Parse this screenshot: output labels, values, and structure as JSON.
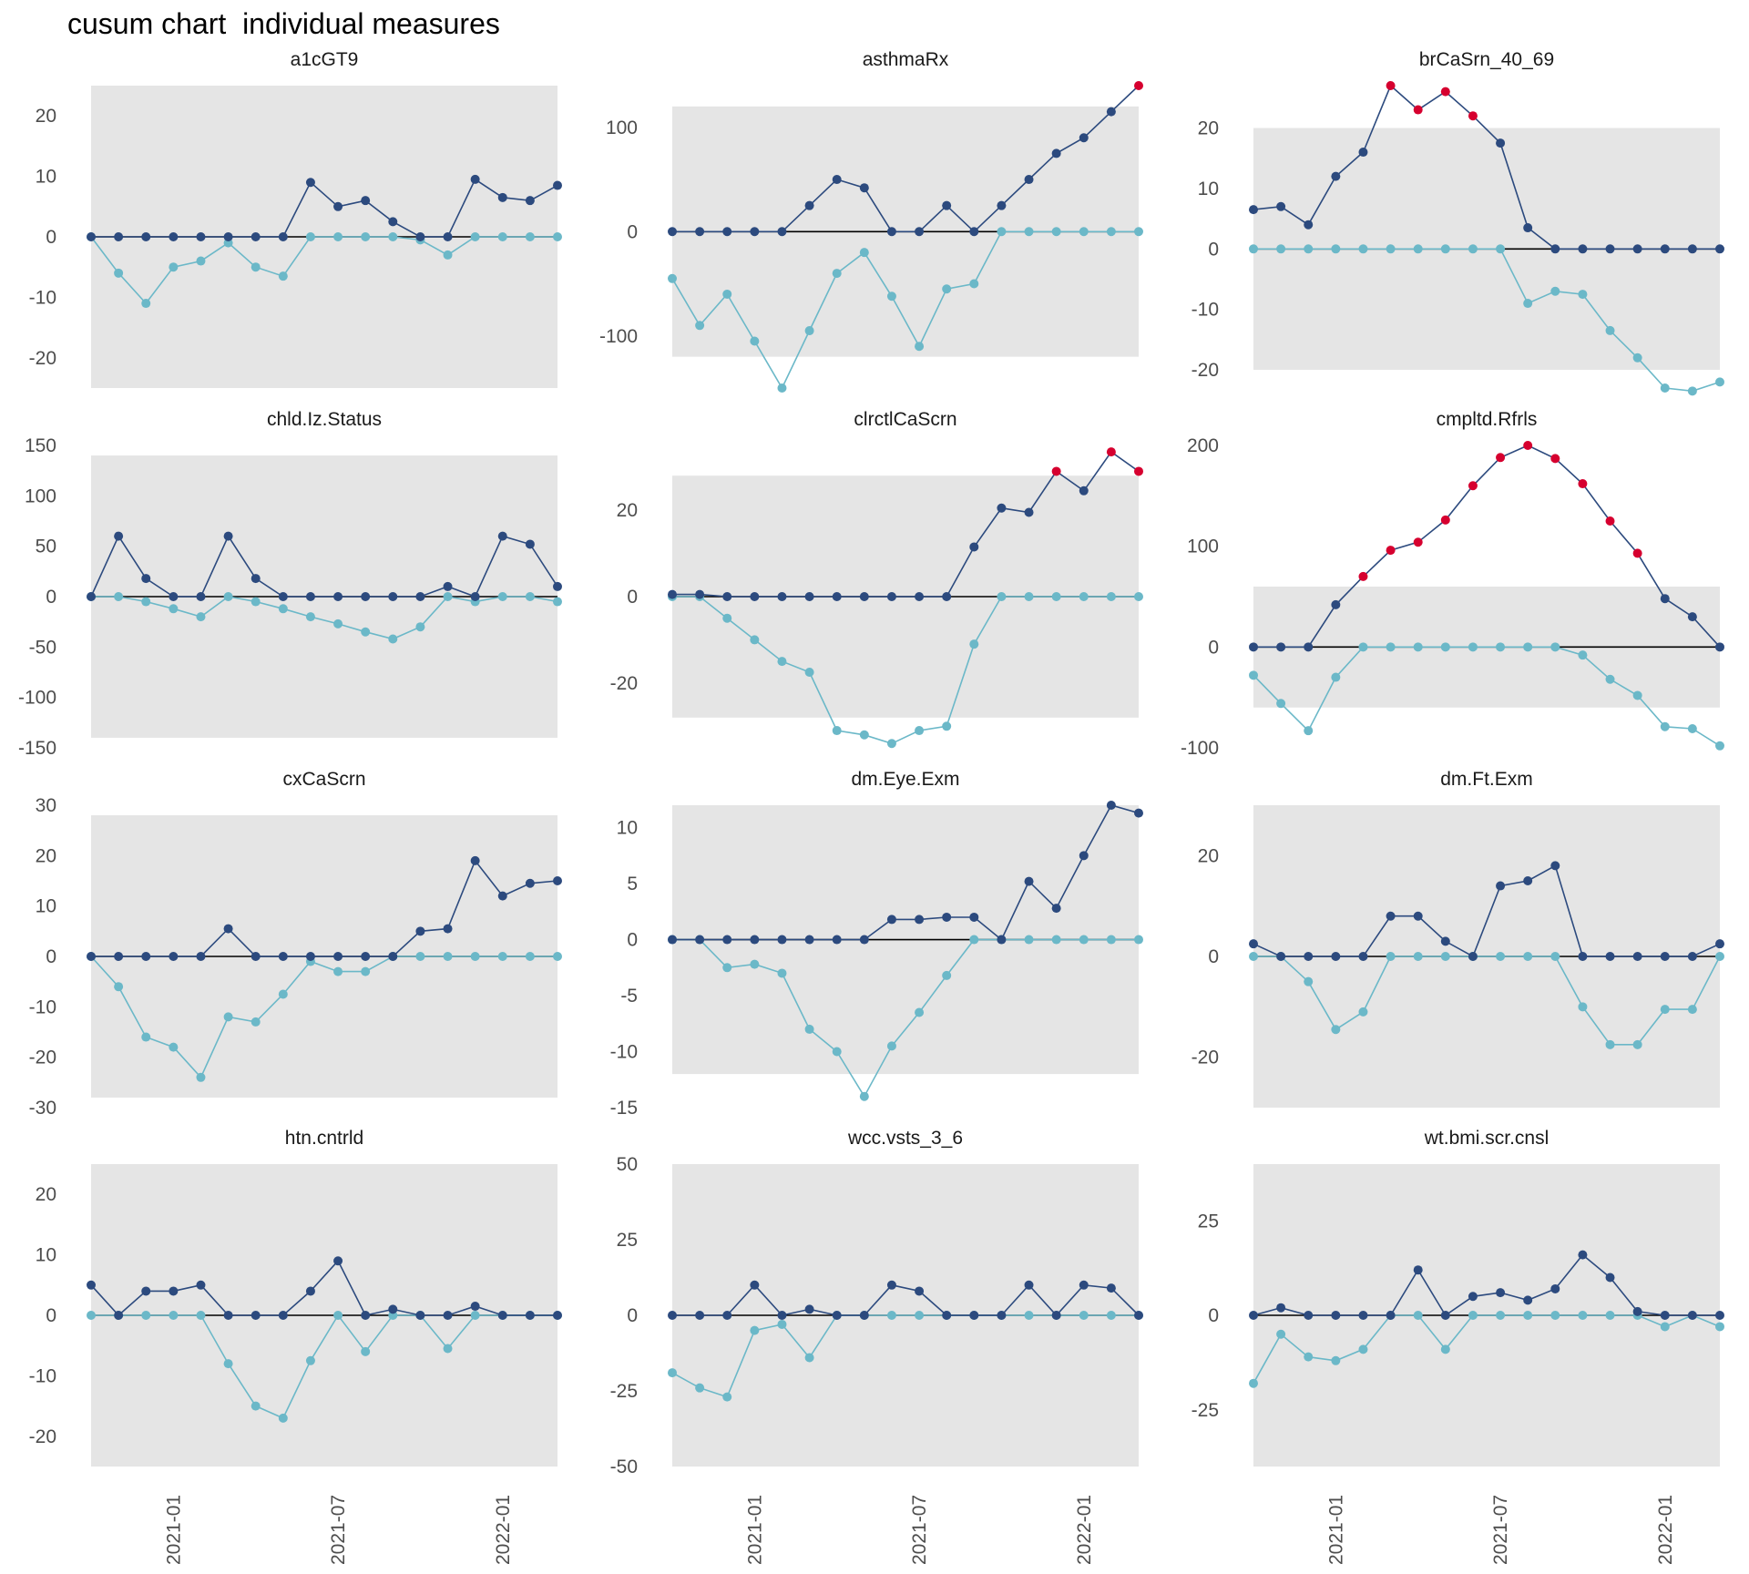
{
  "chart_title": "cusum chart  individual measures",
  "colors": {
    "upper_series": "#2c4a7e",
    "lower_series": "#6bb8c8",
    "signal_point": "#d6002f",
    "band_fill": "#e5e5e5",
    "zero_line": "#000000",
    "axis_text": "#4d4d4d"
  },
  "chart_data": [
    {
      "type": "line",
      "title": "a1cGT9",
      "x": [
        "2020-10",
        "2020-11",
        "2020-12",
        "2021-01",
        "2021-02",
        "2021-03",
        "2021-04",
        "2021-05",
        "2021-06",
        "2021-07",
        "2021-08",
        "2021-09",
        "2021-10",
        "2021-11",
        "2021-12",
        "2022-01",
        "2022-02",
        "2022-03"
      ],
      "ylim": [
        -25,
        25
      ],
      "yticks": [
        -20,
        -10,
        0,
        10,
        20
      ],
      "control_limit": 25,
      "series": [
        {
          "role": "upper",
          "values": [
            0,
            0,
            0,
            0,
            0,
            0,
            0,
            0,
            9,
            5,
            6,
            2.5,
            0,
            0,
            9.5,
            6.5,
            6,
            8.5
          ],
          "signal": []
        },
        {
          "role": "lower",
          "values": [
            0,
            -6,
            -11,
            -5,
            -4,
            -1,
            -5,
            -6.5,
            0,
            0,
            0,
            0,
            -0.5,
            -3,
            0,
            0,
            0,
            0
          ],
          "signal": []
        }
      ]
    },
    {
      "type": "line",
      "title": "asthmaRx",
      "x": [
        "2020-10",
        "2020-11",
        "2020-12",
        "2021-01",
        "2021-02",
        "2021-03",
        "2021-04",
        "2021-05",
        "2021-06",
        "2021-07",
        "2021-08",
        "2021-09",
        "2021-10",
        "2021-11",
        "2021-12",
        "2022-01",
        "2022-02",
        "2022-03"
      ],
      "ylim": [
        -150,
        140
      ],
      "yticks": [
        -100,
        0,
        100
      ],
      "control_limit": 120,
      "series": [
        {
          "role": "upper",
          "values": [
            0,
            0,
            0,
            0,
            0,
            25,
            50,
            42,
            0,
            0,
            25,
            0,
            25,
            50,
            75,
            90,
            115,
            140
          ],
          "signal": [
            17
          ]
        },
        {
          "role": "lower",
          "values": [
            -45,
            -90,
            -60,
            -105,
            -150,
            -95,
            -40,
            -20,
            -62,
            -110,
            -55,
            -50,
            0,
            0,
            0,
            0,
            0,
            0
          ],
          "signal": []
        }
      ]
    },
    {
      "type": "line",
      "title": "brCaSrn_40_69",
      "x": [
        "2020-10",
        "2020-11",
        "2020-12",
        "2021-01",
        "2021-02",
        "2021-03",
        "2021-04",
        "2021-05",
        "2021-06",
        "2021-07",
        "2021-08",
        "2021-09",
        "2021-10",
        "2021-11",
        "2021-12",
        "2022-01",
        "2022-02",
        "2022-03"
      ],
      "ylim": [
        -23,
        27
      ],
      "yticks": [
        -20,
        -10,
        0,
        10,
        20
      ],
      "control_limit": 20,
      "series": [
        {
          "role": "upper",
          "values": [
            6.5,
            7,
            4,
            12,
            16,
            27,
            23,
            26,
            22,
            17.5,
            3.5,
            0,
            0,
            0,
            0,
            0,
            0,
            0
          ],
          "signal": [
            5,
            6,
            7,
            8
          ]
        },
        {
          "role": "lower",
          "values": [
            0,
            0,
            0,
            0,
            0,
            0,
            0,
            0,
            0,
            0,
            -9,
            -7,
            -7.5,
            -13.5,
            -18,
            -23,
            -23.5,
            -22
          ],
          "signal": []
        }
      ]
    },
    {
      "type": "line",
      "title": "chld.Iz.Status",
      "x": [
        "2020-10",
        "2020-11",
        "2020-12",
        "2021-01",
        "2021-02",
        "2021-03",
        "2021-04",
        "2021-05",
        "2021-06",
        "2021-07",
        "2021-08",
        "2021-09",
        "2021-10",
        "2021-11",
        "2021-12",
        "2022-01",
        "2022-02",
        "2022-03"
      ],
      "ylim": [
        -150,
        150
      ],
      "yticks": [
        -150,
        -100,
        -50,
        0,
        50,
        100,
        150
      ],
      "control_limit": 140,
      "series": [
        {
          "role": "upper",
          "values": [
            0,
            60,
            18,
            0,
            0,
            60,
            18,
            0,
            0,
            0,
            0,
            0,
            0,
            10,
            0,
            60,
            52,
            10
          ],
          "signal": []
        },
        {
          "role": "lower",
          "values": [
            0,
            0,
            -5,
            -12,
            -20,
            0,
            -5,
            -12,
            -20,
            -27,
            -35,
            -42,
            -30,
            0,
            -5,
            0,
            0,
            -5
          ],
          "signal": []
        }
      ]
    },
    {
      "type": "line",
      "title": "clrctlCaScrn",
      "x": [
        "2020-10",
        "2020-11",
        "2020-12",
        "2021-01",
        "2021-02",
        "2021-03",
        "2021-04",
        "2021-05",
        "2021-06",
        "2021-07",
        "2021-08",
        "2021-09",
        "2021-10",
        "2021-11",
        "2021-12",
        "2022-01",
        "2022-02",
        "2022-03"
      ],
      "ylim": [
        -35,
        35
      ],
      "yticks": [
        -20,
        0,
        20
      ],
      "control_limit": 28,
      "series": [
        {
          "role": "upper",
          "values": [
            0.5,
            0.5,
            0,
            0,
            0,
            0,
            0,
            0,
            0,
            0,
            0,
            11.5,
            20.5,
            19.5,
            29,
            24.5,
            33.5,
            29
          ],
          "signal": [
            14,
            16,
            17
          ]
        },
        {
          "role": "lower",
          "values": [
            0,
            0,
            -5,
            -10,
            -15,
            -17.5,
            -31,
            -32,
            -34,
            -31,
            -30,
            -11,
            0,
            0,
            0,
            0,
            0,
            0
          ],
          "signal": []
        }
      ]
    },
    {
      "type": "line",
      "title": "cmpltd.Rfrls",
      "x": [
        "2020-10",
        "2020-11",
        "2020-12",
        "2021-01",
        "2021-02",
        "2021-03",
        "2021-04",
        "2021-05",
        "2021-06",
        "2021-07",
        "2021-08",
        "2021-09",
        "2021-10",
        "2021-11",
        "2021-12",
        "2022-01",
        "2022-02",
        "2022-03"
      ],
      "ylim": [
        -100,
        200
      ],
      "yticks": [
        -100,
        0,
        100,
        200
      ],
      "control_limit": 60,
      "series": [
        {
          "role": "upper",
          "values": [
            0,
            0,
            0,
            42,
            70,
            96,
            104,
            126,
            160,
            188,
            200,
            187,
            162,
            125,
            93,
            48,
            30,
            0
          ],
          "signal": [
            4,
            5,
            6,
            7,
            8,
            9,
            10,
            11,
            12,
            13,
            14
          ]
        },
        {
          "role": "lower",
          "values": [
            -28,
            -56,
            -83,
            -30,
            0,
            0,
            0,
            0,
            0,
            0,
            0,
            0,
            -8,
            -32,
            -48,
            -79,
            -81,
            -98
          ],
          "signal": []
        }
      ]
    },
    {
      "type": "line",
      "title": "cxCaScrn",
      "x": [
        "2020-10",
        "2020-11",
        "2020-12",
        "2021-01",
        "2021-02",
        "2021-03",
        "2021-04",
        "2021-05",
        "2021-06",
        "2021-07",
        "2021-08",
        "2021-09",
        "2021-10",
        "2021-11",
        "2021-12",
        "2022-01",
        "2022-02",
        "2022-03"
      ],
      "ylim": [
        -30,
        30
      ],
      "yticks": [
        -30,
        -20,
        -10,
        0,
        10,
        20,
        30
      ],
      "control_limit": 28,
      "series": [
        {
          "role": "upper",
          "values": [
            0,
            0,
            0,
            0,
            0,
            5.5,
            0,
            0,
            0,
            0,
            0,
            0,
            5,
            5.5,
            19,
            12,
            14.5,
            15
          ],
          "signal": []
        },
        {
          "role": "lower",
          "values": [
            0,
            -6,
            -16,
            -18,
            -24,
            -12,
            -13,
            -7.5,
            -1,
            -3,
            -3,
            0,
            0,
            0,
            0,
            0,
            0,
            0
          ],
          "signal": []
        }
      ]
    },
    {
      "type": "line",
      "title": "dm.Eye.Exm",
      "x": [
        "2020-10",
        "2020-11",
        "2020-12",
        "2021-01",
        "2021-02",
        "2021-03",
        "2021-04",
        "2021-05",
        "2021-06",
        "2021-07",
        "2021-08",
        "2021-09",
        "2021-10",
        "2021-11",
        "2021-12",
        "2022-01",
        "2022-02",
        "2022-03"
      ],
      "ylim": [
        -15,
        12
      ],
      "yticks": [
        -15,
        -10,
        -5,
        0,
        5,
        10
      ],
      "control_limit": 12,
      "series": [
        {
          "role": "upper",
          "values": [
            0,
            0,
            0,
            0,
            0,
            0,
            0,
            0,
            1.8,
            1.8,
            2,
            2,
            0,
            5.2,
            2.8,
            7.5,
            12,
            11.3
          ],
          "signal": []
        },
        {
          "role": "lower",
          "values": [
            0,
            0,
            -2.5,
            -2.2,
            -3,
            -8,
            -10,
            -14,
            -9.5,
            -6.5,
            -3.2,
            0,
            0,
            0,
            0,
            0,
            0,
            0
          ],
          "signal": []
        }
      ]
    },
    {
      "type": "line",
      "title": "dm.Ft.Exm",
      "x": [
        "2020-10",
        "2020-11",
        "2020-12",
        "2021-01",
        "2021-02",
        "2021-03",
        "2021-04",
        "2021-05",
        "2021-06",
        "2021-07",
        "2021-08",
        "2021-09",
        "2021-10",
        "2021-11",
        "2021-12",
        "2022-01",
        "2022-02",
        "2022-03"
      ],
      "ylim": [
        -30,
        30
      ],
      "yticks": [
        -20,
        0,
        20
      ],
      "control_limit": 30,
      "series": [
        {
          "role": "upper",
          "values": [
            2.5,
            0,
            0,
            0,
            0,
            8,
            8,
            3,
            0,
            14,
            15,
            18,
            0,
            0,
            0,
            0,
            0,
            2.5
          ],
          "signal": []
        },
        {
          "role": "lower",
          "values": [
            0,
            0,
            -5,
            -14.5,
            -11,
            0,
            0,
            0,
            0,
            0,
            0,
            0,
            -10,
            -17.5,
            -17.5,
            -10.5,
            -10.5,
            0
          ],
          "signal": []
        }
      ]
    },
    {
      "type": "line",
      "title": "htn.cntrld",
      "x": [
        "2020-10",
        "2020-11",
        "2020-12",
        "2021-01",
        "2021-02",
        "2021-03",
        "2021-04",
        "2021-05",
        "2021-06",
        "2021-07",
        "2021-08",
        "2021-09",
        "2021-10",
        "2021-11",
        "2021-12",
        "2022-01",
        "2022-02",
        "2022-03"
      ],
      "ylim": [
        -25,
        25
      ],
      "yticks": [
        -20,
        -10,
        0,
        10,
        20
      ],
      "control_limit": 25,
      "series": [
        {
          "role": "upper",
          "values": [
            5,
            0,
            4,
            4,
            5,
            0,
            0,
            0,
            4,
            9,
            0,
            1,
            0,
            0,
            1.5,
            0,
            0,
            0
          ],
          "signal": []
        },
        {
          "role": "lower",
          "values": [
            0,
            0,
            0,
            0,
            0,
            -8,
            -15,
            -17,
            -7.5,
            0,
            -6,
            0,
            0,
            -5.5,
            0,
            0,
            0,
            0
          ],
          "signal": []
        }
      ]
    },
    {
      "type": "line",
      "title": "wcc.vsts_3_6",
      "x": [
        "2020-10",
        "2020-11",
        "2020-12",
        "2021-01",
        "2021-02",
        "2021-03",
        "2021-04",
        "2021-05",
        "2021-06",
        "2021-07",
        "2021-08",
        "2021-09",
        "2021-10",
        "2021-11",
        "2021-12",
        "2022-01",
        "2022-02",
        "2022-03"
      ],
      "ylim": [
        -50,
        50
      ],
      "yticks": [
        -50,
        -25,
        0,
        25,
        50
      ],
      "control_limit": 50,
      "series": [
        {
          "role": "upper",
          "values": [
            0,
            0,
            0,
            10,
            0,
            2,
            0,
            0,
            10,
            8,
            0,
            0,
            0,
            10,
            0,
            10,
            9,
            0
          ],
          "signal": []
        },
        {
          "role": "lower",
          "values": [
            -19,
            -24,
            -27,
            -5,
            -3,
            -14,
            0,
            0,
            0,
            0,
            0,
            0,
            0,
            0,
            0,
            0,
            0,
            0
          ],
          "signal": []
        }
      ]
    },
    {
      "type": "line",
      "title": "wt.bmi.scr.cnsl",
      "x": [
        "2020-10",
        "2020-11",
        "2020-12",
        "2021-01",
        "2021-02",
        "2021-03",
        "2021-04",
        "2021-05",
        "2021-06",
        "2021-07",
        "2021-08",
        "2021-09",
        "2021-10",
        "2021-11",
        "2021-12",
        "2022-01",
        "2022-02",
        "2022-03"
      ],
      "ylim": [
        -40,
        40
      ],
      "yticks": [
        -25,
        0,
        25
      ],
      "control_limit": 40,
      "series": [
        {
          "role": "upper",
          "values": [
            0,
            2,
            0,
            0,
            0,
            0,
            12,
            0,
            5,
            6,
            4,
            7,
            16,
            10,
            1,
            0,
            0,
            0
          ],
          "signal": []
        },
        {
          "role": "lower",
          "values": [
            -18,
            -5,
            -11,
            -12,
            -9,
            0,
            0,
            -9,
            0,
            0,
            0,
            0,
            0,
            0,
            0,
            -3,
            0,
            -3
          ],
          "signal": []
        }
      ]
    }
  ],
  "x_axis": {
    "tick_labels": [
      "2021-01",
      "2021-07",
      "2022-01"
    ],
    "tick_index": [
      3,
      9,
      15
    ]
  }
}
